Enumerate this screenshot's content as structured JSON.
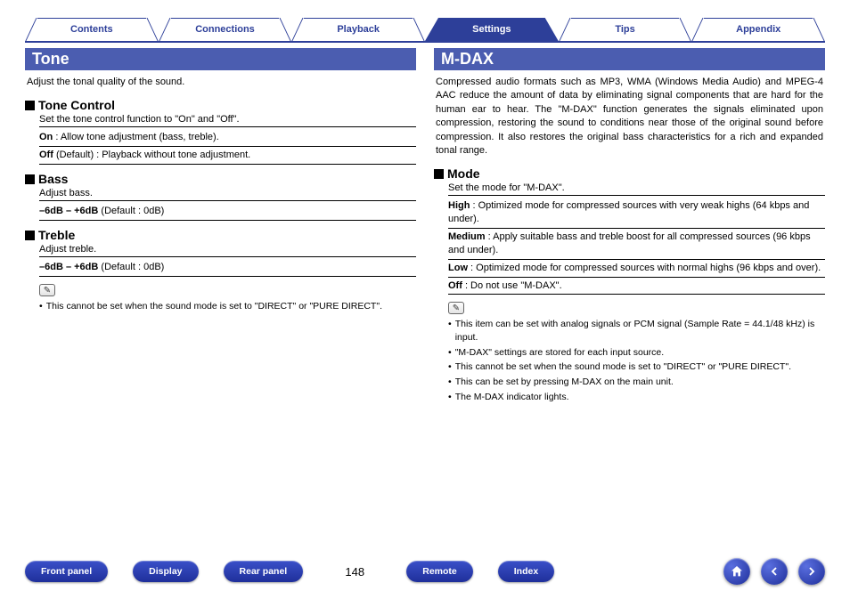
{
  "colors": {
    "brand": "#2d3f99",
    "banner": "#4b5db0",
    "button_gradient_top": "#3a50c9",
    "button_gradient_bottom": "#1f2f9a"
  },
  "top_tabs": [
    {
      "label": "Contents",
      "active": false
    },
    {
      "label": "Connections",
      "active": false
    },
    {
      "label": "Playback",
      "active": false
    },
    {
      "label": "Settings",
      "active": true
    },
    {
      "label": "Tips",
      "active": false
    },
    {
      "label": "Appendix",
      "active": false
    }
  ],
  "left": {
    "title": "Tone",
    "intro": "Adjust the tonal quality of the sound.",
    "sections": [
      {
        "heading": "Tone Control",
        "desc": "Set the tone control function to \"On\" and \"Off\".",
        "rows": [
          {
            "bold": "On",
            "rest": " : Allow tone adjustment (bass, treble)."
          },
          {
            "bold": "Off",
            "rest": " (Default) : Playback without tone adjustment."
          }
        ]
      },
      {
        "heading": "Bass",
        "desc": "Adjust bass.",
        "rows": [
          {
            "bold": "–6dB – +6dB",
            "rest": " (Default : 0dB)"
          }
        ]
      },
      {
        "heading": "Treble",
        "desc": "Adjust treble.",
        "rows": [
          {
            "bold": "–6dB – +6dB",
            "rest": " (Default : 0dB)"
          }
        ]
      }
    ],
    "notes": [
      "This cannot be set when the sound mode is set to \"DIRECT\" or \"PURE DIRECT\"."
    ]
  },
  "right": {
    "title": "M-DAX",
    "intro": "Compressed audio formats such as MP3, WMA (Windows Media Audio) and MPEG-4 AAC reduce the amount of data by eliminating signal components that are hard for the human ear to hear. The \"M-DAX\" function generates the signals eliminated upon compression, restoring the sound to conditions near those of the original sound before compression. It also restores the original bass characteristics for a rich and expanded tonal range.",
    "sections": [
      {
        "heading": "Mode",
        "desc": "Set the mode for \"M-DAX\".",
        "rows": [
          {
            "bold": "High",
            "rest": " : Optimized mode for compressed sources with very weak highs (64 kbps and under)."
          },
          {
            "bold": "Medium",
            "rest": " : Apply suitable bass and treble boost for all compressed sources (96 kbps and under)."
          },
          {
            "bold": "Low",
            "rest": " : Optimized mode for compressed sources with normal highs (96 kbps and over)."
          },
          {
            "bold": "Off",
            "rest": " : Do not use \"M-DAX\"."
          }
        ]
      }
    ],
    "notes": [
      "This item can be set with analog signals or PCM signal (Sample Rate = 44.1/48 kHz) is input.",
      "\"M-DAX\" settings are stored for each input source.",
      "This cannot be set when the sound mode is set to \"DIRECT\" or \"PURE DIRECT\".",
      "This can be set by pressing M-DAX on the main unit.",
      "The M-DAX indicator lights."
    ]
  },
  "footer": {
    "left_buttons": [
      "Front panel",
      "Display",
      "Rear panel"
    ],
    "right_buttons": [
      "Remote",
      "Index"
    ],
    "page_number": "148",
    "circle_icons": [
      "home-icon",
      "arrow-left-icon",
      "arrow-right-icon"
    ]
  }
}
